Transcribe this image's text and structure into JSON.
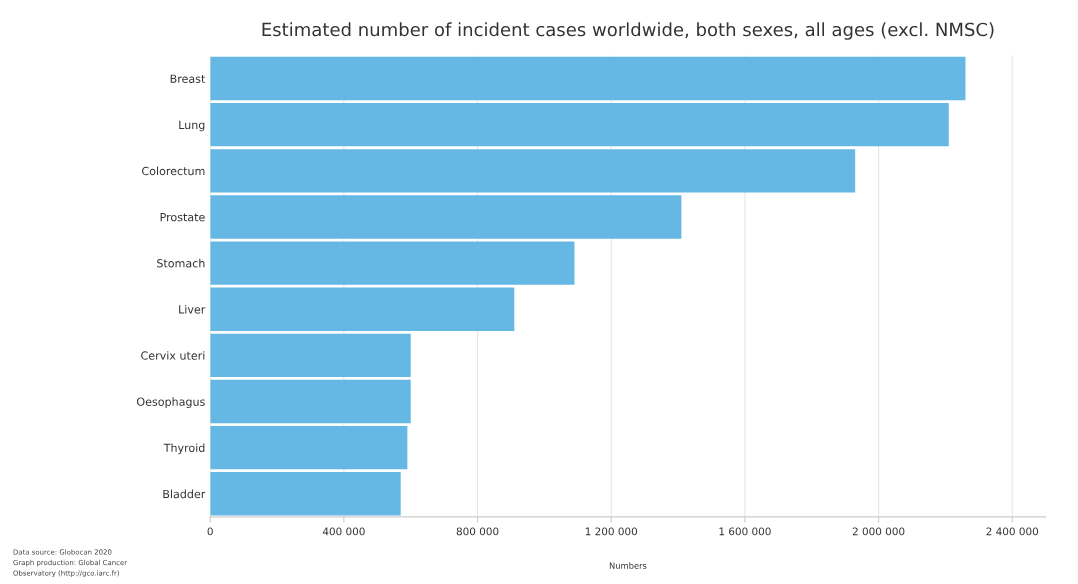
{
  "chart_data": {
    "type": "bar",
    "orientation": "horizontal",
    "title": "Estimated number of incident cases worldwide, both sexes, all ages (excl. NMSC)",
    "xlabel": "Numbers",
    "categories": [
      "Breast",
      "Lung",
      "Colorectum",
      "Prostate",
      "Stomach",
      "Liver",
      "Cervix uteri",
      "Oesophagus",
      "Thyroid",
      "Bladder"
    ],
    "values": [
      2260000,
      2210000,
      1930000,
      1410000,
      1090000,
      910000,
      600000,
      600000,
      590000,
      570000
    ],
    "color": "#66b8e4",
    "xlim": [
      0,
      2500000
    ],
    "xticks": [
      0,
      {
        "value": 400000,
        "label": "400 000"
      },
      {
        "value": 800000,
        "label": "800 000"
      },
      {
        "value": 1200000,
        "label": "1 200 000"
      },
      {
        "value": 1600000,
        "label": "1 600 000"
      },
      {
        "value": 2000000,
        "label": "2 000 000"
      },
      {
        "value": 2400000,
        "label": "2 400 000"
      }
    ],
    "grid": "x",
    "annotations": [
      "Data source: Globocan 2020",
      "Graph production: Global Cancer",
      "Observatory (http://gco.iarc.fr)"
    ]
  }
}
